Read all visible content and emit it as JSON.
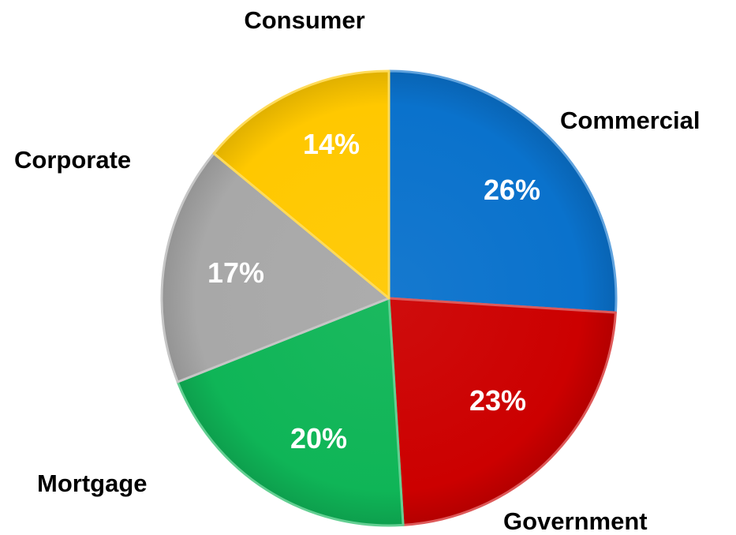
{
  "chart_data": {
    "type": "pie",
    "start": "12 o'clock",
    "direction": "clockwise",
    "slices": [
      {
        "label": "Commercial",
        "value": 26,
        "value_label": "26%",
        "color": "#0a72cc"
      },
      {
        "label": "Government",
        "value": 23,
        "value_label": "23%",
        "color": "#cc0000"
      },
      {
        "label": "Mortgage",
        "value": 20,
        "value_label": "20%",
        "color": "#0fb557"
      },
      {
        "label": "Corporate",
        "value": 17,
        "value_label": "17%",
        "color": "#a8a8a8"
      },
      {
        "label": "Consumer",
        "value": 14,
        "value_label": "14%",
        "color": "#ffc800"
      }
    ]
  }
}
